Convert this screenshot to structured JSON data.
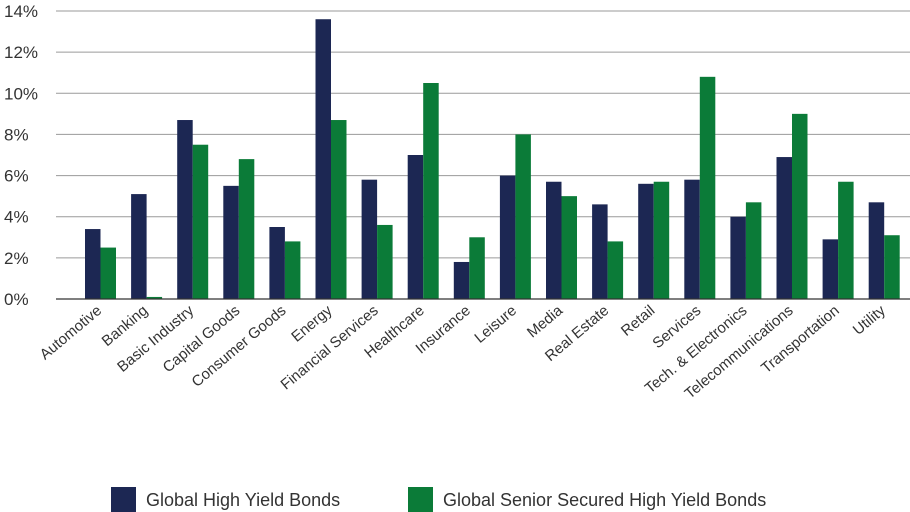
{
  "chart_data": {
    "type": "bar",
    "title": "",
    "xlabel": "",
    "ylabel": "",
    "ylim": [
      0,
      14
    ],
    "yticks": [
      0,
      2,
      4,
      6,
      8,
      10,
      12,
      14
    ],
    "ytick_labels": [
      "0%",
      "2%",
      "4%",
      "6%",
      "8%",
      "10%",
      "12%",
      "14%"
    ],
    "grid": true,
    "legend_position": "bottom",
    "categories": [
      "Automotive",
      "Banking",
      "Basic Industry",
      "Capital Goods",
      "Consumer Goods",
      "Energy",
      "Financial Services",
      "Healthcare",
      "Insurance",
      "Leisure",
      "Media",
      "Real Estate",
      "Retail",
      "Services",
      "Tech. & Electronics",
      "Telecommunications",
      "Transportation",
      "Utility"
    ],
    "series": [
      {
        "name": "Global High Yield Bonds",
        "color": "#1c2753",
        "values": [
          3.4,
          5.1,
          8.7,
          5.5,
          3.5,
          13.6,
          5.8,
          7.0,
          1.8,
          6.0,
          5.7,
          4.6,
          5.6,
          5.8,
          4.0,
          6.9,
          2.9,
          4.7
        ]
      },
      {
        "name": "Global Senior Secured High Yield Bonds",
        "color": "#0b7b38",
        "values": [
          2.5,
          0.1,
          7.5,
          6.8,
          2.8,
          8.7,
          3.6,
          10.5,
          3.0,
          8.0,
          5.0,
          2.8,
          5.7,
          10.8,
          4.7,
          9.0,
          5.7,
          3.1
        ]
      }
    ]
  }
}
